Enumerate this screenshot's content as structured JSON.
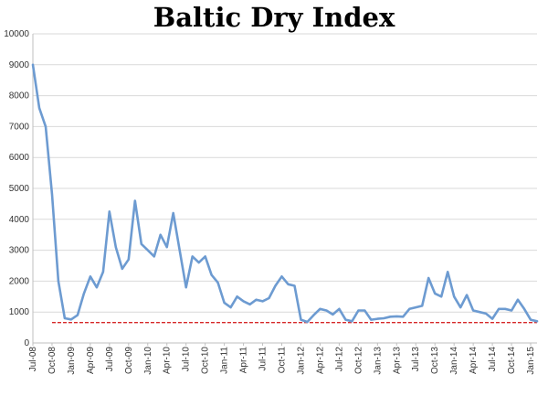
{
  "chart_data": {
    "type": "line",
    "title": "Baltic Dry Index",
    "xlabel": "",
    "ylabel": "",
    "ylim": [
      0,
      10000
    ],
    "yticks": [
      0,
      1000,
      2000,
      3000,
      4000,
      5000,
      6000,
      7000,
      8000,
      9000,
      10000
    ],
    "grid": true,
    "legend": "none",
    "x_tick_labels": [
      "Jul-08",
      "Oct-08",
      "Jan-09",
      "Apr-09",
      "Jul-09",
      "Oct-09",
      "Jan-10",
      "Apr-10",
      "Jul-10",
      "Oct-10",
      "Jan-11",
      "Apr-11",
      "Jul-11",
      "Oct-11",
      "Jan-12",
      "Apr-12",
      "Jul-12",
      "Oct-12",
      "Jan-13",
      "Apr-13",
      "Jul-13",
      "Oct-13",
      "Jan-14",
      "Apr-14",
      "Jul-14",
      "Oct-14",
      "Jan-15"
    ],
    "series": [
      {
        "color": "#6d9bd1",
        "points": [
          [
            "Jul-08",
            9000
          ],
          [
            "Aug-08",
            7600
          ],
          [
            "Sep-08",
            7000
          ],
          [
            "Oct-08",
            4800
          ],
          [
            "Nov-08",
            2000
          ],
          [
            "Dec-08",
            800
          ],
          [
            "Jan-09",
            760
          ],
          [
            "Feb-09",
            900
          ],
          [
            "Mar-09",
            1600
          ],
          [
            "Apr-09",
            2150
          ],
          [
            "May-09",
            1800
          ],
          [
            "Jun-09",
            2300
          ],
          [
            "Jul-09",
            4250
          ],
          [
            "Aug-09",
            3100
          ],
          [
            "Sep-09",
            2400
          ],
          [
            "Oct-09",
            2700
          ],
          [
            "Nov-09",
            4600
          ],
          [
            "Dec-09",
            3200
          ],
          [
            "Jan-10",
            3000
          ],
          [
            "Feb-10",
            2800
          ],
          [
            "Mar-10",
            3500
          ],
          [
            "Apr-10",
            3100
          ],
          [
            "May-10",
            4200
          ],
          [
            "Jun-10",
            3000
          ],
          [
            "Jul-10",
            1800
          ],
          [
            "Aug-10",
            2800
          ],
          [
            "Sep-10",
            2600
          ],
          [
            "Oct-10",
            2800
          ],
          [
            "Nov-10",
            2200
          ],
          [
            "Dec-10",
            1950
          ],
          [
            "Jan-11",
            1300
          ],
          [
            "Feb-11",
            1150
          ],
          [
            "Mar-11",
            1500
          ],
          [
            "Apr-11",
            1350
          ],
          [
            "May-11",
            1250
          ],
          [
            "Jun-11",
            1400
          ],
          [
            "Jul-11",
            1350
          ],
          [
            "Aug-11",
            1450
          ],
          [
            "Sep-11",
            1850
          ],
          [
            "Oct-11",
            2150
          ],
          [
            "Nov-11",
            1900
          ],
          [
            "Dec-11",
            1850
          ],
          [
            "Jan-12",
            750
          ],
          [
            "Feb-12",
            680
          ],
          [
            "Mar-12",
            900
          ],
          [
            "Apr-12",
            1100
          ],
          [
            "May-12",
            1050
          ],
          [
            "Jun-12",
            920
          ],
          [
            "Jul-12",
            1100
          ],
          [
            "Aug-12",
            750
          ],
          [
            "Sep-12",
            700
          ],
          [
            "Oct-12",
            1050
          ],
          [
            "Nov-12",
            1050
          ],
          [
            "Dec-12",
            750
          ],
          [
            "Jan-13",
            780
          ],
          [
            "Feb-13",
            800
          ],
          [
            "Mar-13",
            850
          ],
          [
            "Apr-13",
            860
          ],
          [
            "May-13",
            850
          ],
          [
            "Jun-13",
            1100
          ],
          [
            "Jul-13",
            1150
          ],
          [
            "Aug-13",
            1200
          ],
          [
            "Sep-13",
            2100
          ],
          [
            "Oct-13",
            1600
          ],
          [
            "Nov-13",
            1500
          ],
          [
            "Dec-13",
            2300
          ],
          [
            "Jan-14",
            1500
          ],
          [
            "Feb-14",
            1150
          ],
          [
            "Mar-14",
            1550
          ],
          [
            "Apr-14",
            1050
          ],
          [
            "May-14",
            1000
          ],
          [
            "Jun-14",
            950
          ],
          [
            "Jul-14",
            780
          ],
          [
            "Aug-14",
            1100
          ],
          [
            "Sep-14",
            1100
          ],
          [
            "Oct-14",
            1050
          ],
          [
            "Nov-14",
            1400
          ],
          [
            "Dec-14",
            1100
          ],
          [
            "Jan-15",
            750
          ],
          [
            "Feb-15",
            700
          ]
        ]
      }
    ],
    "reference_line": {
      "value": 660,
      "style": "dashed",
      "color": "#d62728"
    }
  }
}
